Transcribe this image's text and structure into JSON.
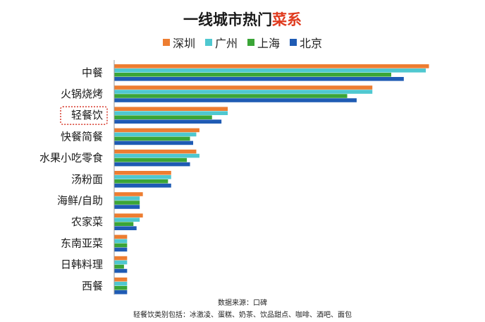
{
  "title": {
    "main": "一线城市热门",
    "highlight": "菜系"
  },
  "source_text": "数据来源：口碑",
  "note_text": "轻餐饮类别包括：冰激凌、蛋糕、奶茶、饮品甜点、咖啡、酒吧、面包",
  "highlight_category": "轻餐饮",
  "colors": {
    "highlight_text": "#e03a1e",
    "highlight_box": "#d9483b",
    "axis": "#999999"
  },
  "chart_data": {
    "type": "bar",
    "orientation": "horizontal",
    "categories": [
      "中餐",
      "火锅烧烤",
      "轻餐饮",
      "快餐简餐",
      "水果小吃零食",
      "汤粉面",
      "海鲜/自助",
      "农家菜",
      "东南亚菜",
      "日韩料理",
      "西餐"
    ],
    "series": [
      {
        "name": "深圳",
        "color": "#ed7d31",
        "values": [
          100,
          82,
          36,
          27,
          26,
          18,
          9,
          9,
          4,
          4,
          4
        ]
      },
      {
        "name": "广州",
        "color": "#4fc8d0",
        "values": [
          99,
          82,
          36,
          26,
          27,
          18,
          8,
          8,
          4,
          4,
          4
        ]
      },
      {
        "name": "上海",
        "color": "#3aa537",
        "values": [
          88,
          74,
          31,
          24,
          23,
          17,
          8,
          6,
          4,
          3,
          4
        ]
      },
      {
        "name": "北京",
        "color": "#1f5bb4",
        "values": [
          92,
          77,
          34,
          25,
          24,
          18,
          8,
          7,
          4,
          4,
          4
        ]
      }
    ],
    "xlim": [
      0,
      100
    ],
    "grid": false,
    "legend_position": "top"
  }
}
